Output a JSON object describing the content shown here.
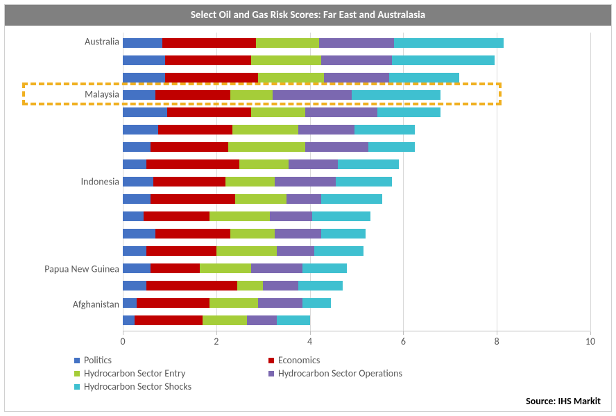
{
  "title": "Select Oil and Gas Risk Scores: Far East and Australasia",
  "source": "Source: IHS Markit",
  "chart": {
    "type": "stacked-horizontal-bar",
    "background_color": "#ffffff",
    "grid_color": "#d9d9d9",
    "axis_color": "#bfbfbf",
    "title_bg": "#808080",
    "title_color": "#ffffff",
    "label_color": "#595959",
    "title_fontsize": 15,
    "label_fontsize": 14,
    "xlim": [
      0,
      10
    ],
    "xtick_step": 2,
    "xticks": [
      0,
      2,
      4,
      6,
      8,
      10
    ],
    "series": [
      {
        "name": "Politics",
        "color": "#4472c4"
      },
      {
        "name": "Economics",
        "color": "#c00000"
      },
      {
        "name": "Hydrocarbon Sector Entry",
        "color": "#a5cd39"
      },
      {
        "name": "Hydrocarbon Sector Operations",
        "color": "#7b68b0"
      },
      {
        "name": "Hydrocarbon Sector Shocks",
        "color": "#3fc0d0"
      }
    ],
    "y_labels": [
      {
        "text": "Australia",
        "row_index": 0
      },
      {
        "text": "Malaysia",
        "row_index": 3
      },
      {
        "text": "Indonesia",
        "row_index": 8
      },
      {
        "text": "Papua New Guinea",
        "row_index": 13
      },
      {
        "text": "Afghanistan",
        "row_index": 15
      }
    ],
    "rows": [
      {
        "values": [
          0.85,
          2.0,
          1.35,
          1.6,
          2.35
        ]
      },
      {
        "values": [
          0.9,
          1.85,
          1.5,
          1.5,
          2.2
        ]
      },
      {
        "values": [
          0.9,
          2.0,
          1.4,
          1.4,
          1.5
        ]
      },
      {
        "values": [
          0.7,
          1.6,
          0.9,
          1.7,
          1.9
        ]
      },
      {
        "values": [
          0.95,
          1.8,
          1.15,
          1.55,
          1.35
        ]
      },
      {
        "values": [
          0.75,
          1.6,
          1.4,
          1.2,
          1.3
        ]
      },
      {
        "values": [
          0.6,
          1.65,
          1.65,
          1.35,
          1.0
        ]
      },
      {
        "values": [
          0.5,
          2.0,
          1.05,
          1.05,
          1.3
        ]
      },
      {
        "values": [
          0.65,
          1.55,
          1.05,
          1.3,
          1.2
        ]
      },
      {
        "values": [
          0.6,
          1.8,
          1.1,
          0.75,
          1.3
        ]
      },
      {
        "values": [
          0.45,
          1.4,
          1.3,
          0.9,
          1.25
        ]
      },
      {
        "values": [
          0.7,
          1.6,
          0.95,
          1.0,
          0.95
        ]
      },
      {
        "values": [
          0.5,
          1.5,
          1.3,
          0.8,
          1.05
        ]
      },
      {
        "values": [
          0.6,
          1.05,
          1.1,
          1.1,
          0.95
        ]
      },
      {
        "values": [
          0.5,
          1.95,
          0.55,
          0.75,
          0.95
        ]
      },
      {
        "values": [
          0.3,
          1.55,
          1.05,
          0.95,
          0.6
        ]
      },
      {
        "values": [
          0.25,
          1.45,
          0.95,
          0.65,
          0.7
        ]
      }
    ],
    "highlight": {
      "color": "#f0b020",
      "target_row_index": 3
    }
  }
}
